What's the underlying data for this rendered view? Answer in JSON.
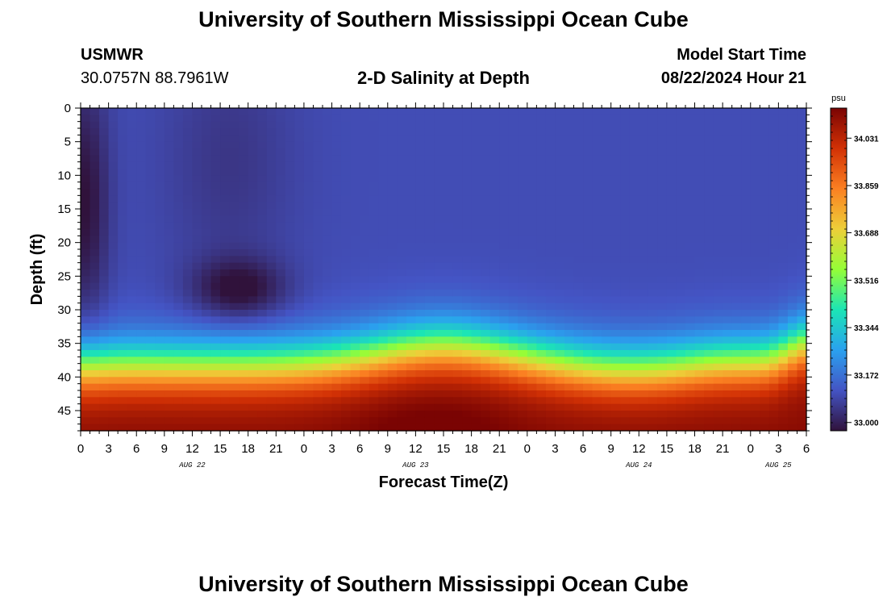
{
  "header": {
    "title": "University of Southern Mississippi Ocean Cube",
    "station_id": "USMWR",
    "station_coords": "30.0757N  88.7961W",
    "plot_title": "2-D Salinity at Depth",
    "model_start_label": "Model Start Time",
    "model_start_value": "08/22/2024 Hour 21"
  },
  "footer": {
    "title": "University of Southern Mississippi Ocean Cube"
  },
  "colors": {
    "colormap": [
      "#30123b",
      "#4454c4",
      "#2aa1ef",
      "#1be5b5",
      "#95fe37",
      "#edcf39",
      "#fb8022",
      "#d23105",
      "#7a0403"
    ]
  },
  "chart_data": {
    "type": "heatmap",
    "title": "2-D Salinity at Depth",
    "xlabel": "Forecast Time(Z)",
    "ylabel": "Depth (ft)",
    "x_tick_labels": [
      "0",
      "3",
      "6",
      "9",
      "12",
      "15",
      "18",
      "21",
      "0",
      "3",
      "6",
      "9",
      "12",
      "15",
      "18",
      "21",
      "0",
      "3",
      "6",
      "9",
      "12",
      "15",
      "18",
      "21",
      "0",
      "3",
      "6"
    ],
    "day_labels": [
      {
        "label": "AUG 22",
        "hour": 12
      },
      {
        "label": "AUG 23",
        "hour": 36
      },
      {
        "label": "AUG 24",
        "hour": 60
      },
      {
        "label": "AUG 25",
        "hour": 75
      }
    ],
    "xlim": [
      0,
      78
    ],
    "y_tick_labels": [
      "0",
      "5",
      "10",
      "15",
      "20",
      "25",
      "30",
      "35",
      "40",
      "45"
    ],
    "ylim": [
      0,
      48
    ],
    "colorbar": {
      "unit": "psu",
      "tick_labels": [
        "33.000",
        "33.172",
        "33.344",
        "33.516",
        "33.688",
        "33.859",
        "34.031"
      ],
      "range": [
        32.97,
        34.14
      ]
    },
    "value_range": [
      32.97,
      34.14
    ]
  }
}
